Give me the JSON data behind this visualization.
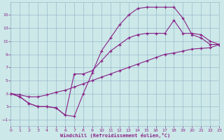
{
  "bg_color": "#cce8e8",
  "line_color": "#882288",
  "grid_color": "#99bbcc",
  "xlim": [
    0,
    23
  ],
  "ylim": [
    -2,
    17
  ],
  "xticks": [
    0,
    1,
    2,
    3,
    4,
    5,
    6,
    7,
    8,
    9,
    10,
    11,
    12,
    13,
    14,
    15,
    16,
    17,
    18,
    19,
    20,
    21,
    22,
    23
  ],
  "yticks": [
    -1,
    1,
    3,
    5,
    7,
    9,
    11,
    13,
    15
  ],
  "xlabel": "Windchill (Refroidissement éolien,°C)",
  "series": [
    {
      "x": [
        0,
        1,
        2,
        3,
        4,
        5,
        6,
        7,
        8,
        9,
        10,
        11,
        12,
        13,
        14,
        15,
        16,
        17,
        18,
        19,
        20,
        21,
        22,
        23
      ],
      "y": [
        3.0,
        2.5,
        1.5,
        1.0,
        1.0,
        0.8,
        -0.3,
        -0.5,
        3.0,
        6.2,
        9.5,
        11.5,
        13.5,
        15.0,
        16.0,
        16.2,
        16.2,
        16.2,
        16.2,
        14.5,
        12.0,
        11.5,
        10.5,
        10.5
      ]
    },
    {
      "x": [
        0,
        1,
        2,
        3,
        4,
        5,
        6,
        7,
        8,
        9,
        10,
        11,
        12,
        13,
        14,
        15,
        16,
        17,
        18,
        19,
        20,
        21,
        22,
        23
      ],
      "y": [
        3.0,
        2.5,
        1.5,
        1.0,
        1.0,
        0.8,
        -0.3,
        6.0,
        6.0,
        6.5,
        8.0,
        9.5,
        10.5,
        11.5,
        12.0,
        12.2,
        12.2,
        12.2,
        14.2,
        12.2,
        12.2,
        12.0,
        11.0,
        10.5
      ]
    },
    {
      "x": [
        0,
        1,
        2,
        3,
        4,
        5,
        6,
        7,
        8,
        9,
        10,
        11,
        12,
        13,
        14,
        15,
        16,
        17,
        18,
        19,
        20,
        21,
        22,
        23
      ],
      "y": [
        3.0,
        2.8,
        2.5,
        2.5,
        2.8,
        3.2,
        3.5,
        4.0,
        4.5,
        5.0,
        5.5,
        6.0,
        6.5,
        7.0,
        7.5,
        8.0,
        8.5,
        9.0,
        9.2,
        9.5,
        9.8,
        9.9,
        10.0,
        10.5
      ]
    }
  ]
}
